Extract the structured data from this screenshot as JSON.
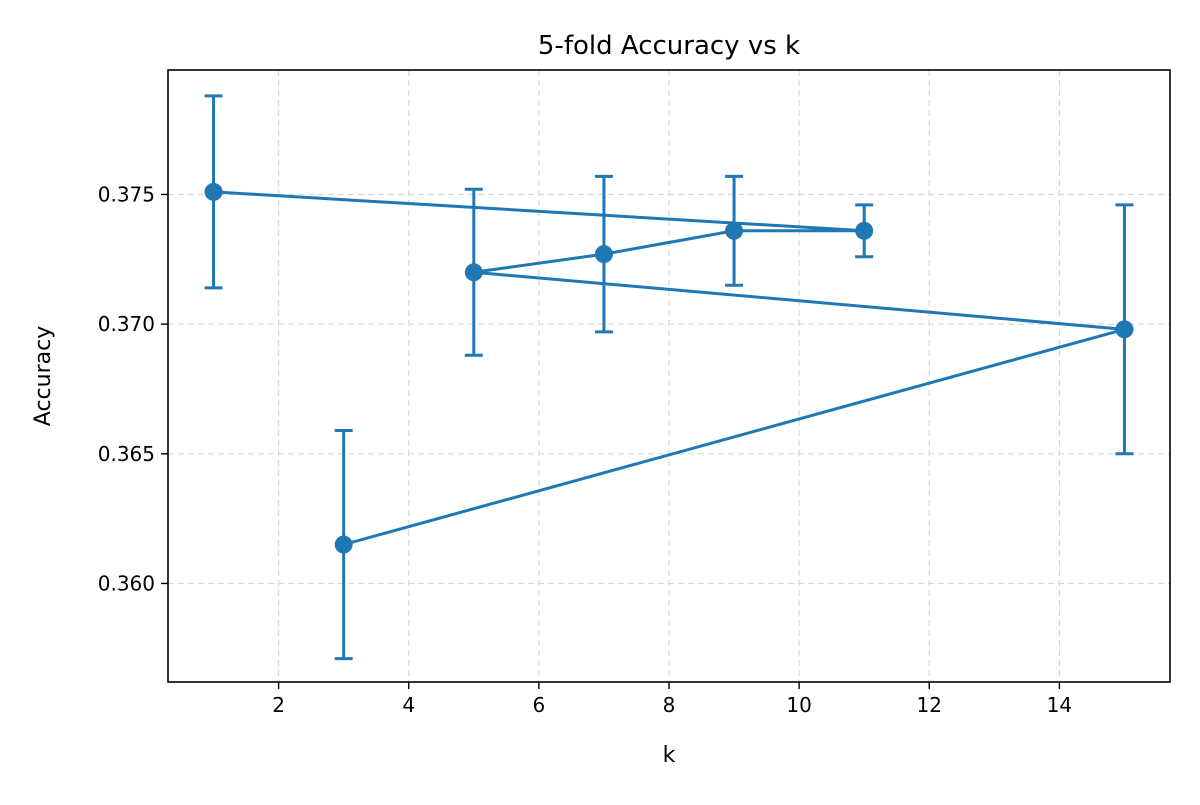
{
  "chart_data": {
    "type": "line",
    "title": "5-fold Accuracy vs k",
    "xlabel": "k",
    "ylabel": "Accuracy",
    "xlim": [
      0.3,
      15.7
    ],
    "ylim": [
      0.3562,
      0.3798
    ],
    "xticks": [
      2,
      4,
      6,
      8,
      10,
      12,
      14
    ],
    "yticks": [
      0.36,
      0.365,
      0.37,
      0.375
    ],
    "xtick_labels": [
      "2",
      "4",
      "6",
      "8",
      "10",
      "12",
      "14"
    ],
    "ytick_labels": [
      "0.360",
      "0.365",
      "0.370",
      "0.375"
    ],
    "grid": true,
    "legend": "none",
    "series": [
      {
        "color": "#1f77b4",
        "marker": "circle",
        "points": [
          {
            "x": 1,
            "y": 0.3751,
            "err": 0.0037
          },
          {
            "x": 11,
            "y": 0.3736,
            "err": 0.001
          },
          {
            "x": 9,
            "y": 0.3736,
            "err": 0.0021
          },
          {
            "x": 7,
            "y": 0.3727,
            "err": 0.003
          },
          {
            "x": 5,
            "y": 0.372,
            "err": 0.0032
          },
          {
            "x": 15,
            "y": 0.3698,
            "err": 0.0048
          },
          {
            "x": 3,
            "y": 0.3615,
            "err": 0.0044
          }
        ]
      }
    ]
  }
}
